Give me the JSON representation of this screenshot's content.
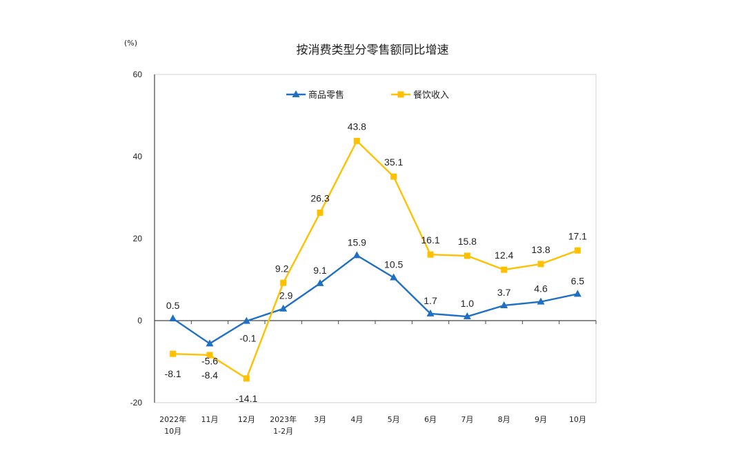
{
  "chart_data": {
    "type": "line",
    "title": "按消费类型分零售额同比增速",
    "ylabel": "(%)",
    "xlabel": "",
    "ylim": [
      -20,
      60
    ],
    "yticks": [
      -20,
      0,
      20,
      40,
      60
    ],
    "grid": false,
    "legend_position": "top-center",
    "categories": [
      [
        "2022年",
        "10月"
      ],
      [
        "11月"
      ],
      [
        "12月"
      ],
      [
        "2023年",
        "1-2月"
      ],
      [
        "3月"
      ],
      [
        "4月"
      ],
      [
        "5月"
      ],
      [
        "6月"
      ],
      [
        "7月"
      ],
      [
        "8月"
      ],
      [
        "9月"
      ],
      [
        "10月"
      ]
    ],
    "series": [
      {
        "name": "商品零售",
        "color": "#1F6FC5",
        "marker": "triangle",
        "values": [
          0.5,
          -5.6,
          -0.1,
          2.9,
          9.1,
          15.9,
          10.5,
          1.7,
          1.0,
          3.7,
          4.6,
          6.5
        ],
        "labels": [
          "0.5",
          "-5.6",
          "-0.1",
          "2.9",
          "9.1",
          "15.9",
          "10.5",
          "1.7",
          "1.0",
          "3.7",
          "4.6",
          "6.5"
        ]
      },
      {
        "name": "餐饮收入",
        "color": "#FFC000",
        "marker": "square",
        "values": [
          -8.1,
          -8.4,
          -14.1,
          9.2,
          26.3,
          43.8,
          35.1,
          16.1,
          15.8,
          12.4,
          13.8,
          17.1
        ],
        "labels": [
          "-8.1",
          "-8.4",
          "-14.1",
          "9.2",
          "26.3",
          "43.8",
          "35.1",
          "16.1",
          "15.8",
          "12.4",
          "13.8",
          "17.1"
        ]
      }
    ]
  }
}
